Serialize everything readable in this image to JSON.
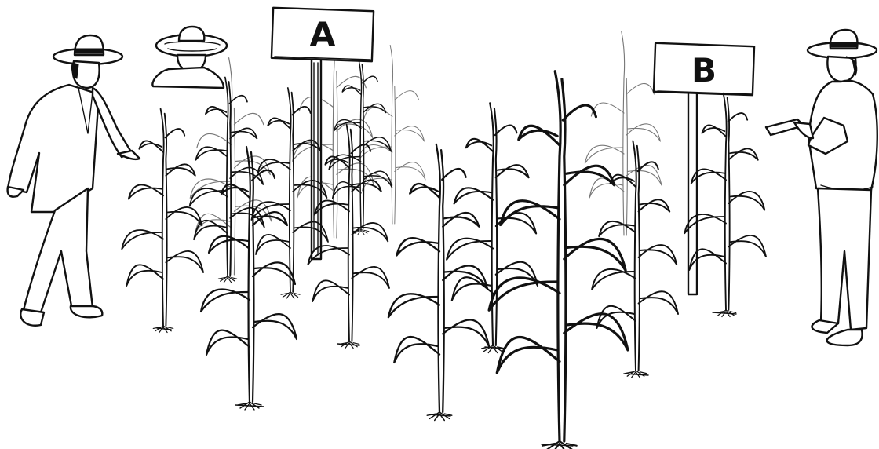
{
  "signs": [
    {
      "letter": "A"
    },
    {
      "letter": "B"
    }
  ],
  "colors": {
    "ink": "#111111",
    "paper": "#ffffff"
  }
}
